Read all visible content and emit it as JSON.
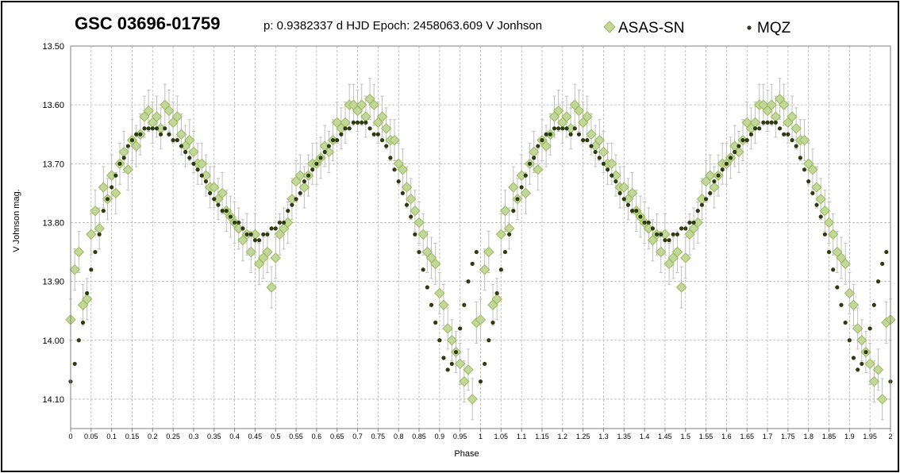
{
  "chart_data": {
    "type": "scatter",
    "title": "GSC 03696-01759",
    "subtitle": "p: 0.9382337 d  HJD Epoch: 2458063.609  V Jonhson",
    "xlabel": "Phase",
    "ylabel": "V Johnson mag.",
    "xlim": [
      0,
      2
    ],
    "ylim": [
      14.15,
      13.5
    ],
    "y_inverted": true,
    "grid": true,
    "legend_position": "top-right",
    "x_ticks": [
      "0",
      "0.05",
      "0.1",
      "0.15",
      "0.2",
      "0.25",
      "0.3",
      "0.35",
      "0.4",
      "0.45",
      "0.5",
      "0.55",
      "0.6",
      "0.65",
      "0.7",
      "0.75",
      "0.8",
      "0.85",
      "0.9",
      "0.95",
      "1",
      "1.05",
      "1.1",
      "1.15",
      "1.2",
      "1.25",
      "1.3",
      "1.35",
      "1.4",
      "1.45",
      "1.5",
      "1.55",
      "1.6",
      "1.65",
      "1.7",
      "1.75",
      "1.8",
      "1.85",
      "1.9",
      "1.95",
      "2"
    ],
    "y_ticks": [
      "13.50",
      "13.60",
      "13.70",
      "13.80",
      "13.90",
      "14.00",
      "14.10"
    ],
    "series": [
      {
        "name": "ASAS-SN",
        "marker": "diamond",
        "color": "#c3d69b",
        "edge_color": "#9bbb59",
        "error_bars": true,
        "x": [
          0.0,
          0.01,
          0.02,
          0.03,
          0.04,
          0.05,
          0.06,
          0.07,
          0.08,
          0.09,
          0.1,
          0.11,
          0.12,
          0.13,
          0.14,
          0.15,
          0.16,
          0.17,
          0.18,
          0.19,
          0.2,
          0.21,
          0.22,
          0.23,
          0.24,
          0.25,
          0.26,
          0.27,
          0.28,
          0.29,
          0.3,
          0.31,
          0.32,
          0.33,
          0.34,
          0.35,
          0.36,
          0.37,
          0.38,
          0.39,
          0.4,
          0.41,
          0.42,
          0.43,
          0.44,
          0.45,
          0.46,
          0.47,
          0.48,
          0.49,
          0.5,
          0.51,
          0.52,
          0.53,
          0.54,
          0.55,
          0.56,
          0.57,
          0.58,
          0.59,
          0.6,
          0.61,
          0.62,
          0.63,
          0.64,
          0.65,
          0.66,
          0.67,
          0.68,
          0.69,
          0.7,
          0.71,
          0.72,
          0.73,
          0.74,
          0.75,
          0.76,
          0.77,
          0.78,
          0.79,
          0.8,
          0.81,
          0.82,
          0.83,
          0.84,
          0.85,
          0.86,
          0.87,
          0.88,
          0.89,
          0.9,
          0.91,
          0.92,
          0.93,
          0.94,
          0.95,
          0.96,
          0.97,
          0.98,
          0.99,
          1.0,
          1.01,
          1.02,
          1.03,
          1.04,
          1.05,
          1.06,
          1.07,
          1.08,
          1.09,
          1.1,
          1.11,
          1.12,
          1.13,
          1.14,
          1.15,
          1.16,
          1.17,
          1.18,
          1.19,
          1.2,
          1.21,
          1.22,
          1.23,
          1.24,
          1.25,
          1.26,
          1.27,
          1.28,
          1.29,
          1.3,
          1.31,
          1.32,
          1.33,
          1.34,
          1.35,
          1.36,
          1.37,
          1.38,
          1.39,
          1.4,
          1.41,
          1.42,
          1.43,
          1.44,
          1.45,
          1.46,
          1.47,
          1.48,
          1.49,
          1.5,
          1.51,
          1.52,
          1.53,
          1.54,
          1.55,
          1.56,
          1.57,
          1.58,
          1.59,
          1.6,
          1.61,
          1.62,
          1.63,
          1.64,
          1.65,
          1.66,
          1.67,
          1.68,
          1.69,
          1.7,
          1.71,
          1.72,
          1.73,
          1.74,
          1.75,
          1.76,
          1.77,
          1.78,
          1.79,
          1.8,
          1.81,
          1.82,
          1.83,
          1.84,
          1.85,
          1.86,
          1.87,
          1.88,
          1.89,
          1.9,
          1.91,
          1.92,
          1.93,
          1.94,
          1.95,
          1.96,
          1.97,
          1.98,
          1.99,
          2.0
        ],
        "y": [
          13.965,
          13.88,
          13.85,
          13.94,
          13.93,
          13.82,
          13.78,
          13.81,
          13.74,
          13.76,
          13.72,
          13.75,
          13.7,
          13.68,
          13.71,
          13.66,
          13.67,
          13.65,
          13.62,
          13.61,
          13.63,
          13.62,
          13.64,
          13.6,
          13.61,
          13.63,
          13.62,
          13.65,
          13.67,
          13.66,
          13.68,
          13.7,
          13.7,
          13.72,
          13.74,
          13.74,
          13.76,
          13.75,
          13.78,
          13.79,
          13.8,
          13.81,
          13.83,
          13.82,
          13.85,
          13.82,
          13.87,
          13.86,
          13.85,
          13.91,
          13.86,
          13.82,
          13.81,
          13.8,
          13.76,
          13.73,
          13.72,
          13.74,
          13.72,
          13.7,
          13.7,
          13.69,
          13.67,
          13.68,
          13.66,
          13.63,
          13.64,
          13.63,
          13.6,
          13.6,
          13.61,
          13.6,
          13.62,
          13.59,
          13.6,
          13.63,
          13.62,
          13.64,
          13.66,
          13.66,
          13.7,
          13.71,
          13.74,
          13.76,
          13.78,
          13.8,
          13.82,
          13.85,
          13.86,
          13.87,
          13.92,
          13.94,
          13.98,
          14.0,
          14.02,
          14.04,
          14.07,
          14.05,
          14.1,
          13.97,
          13.965,
          13.88,
          13.85,
          13.94,
          13.93,
          13.82,
          13.78,
          13.81,
          13.74,
          13.76,
          13.72,
          13.75,
          13.7,
          13.68,
          13.71,
          13.66,
          13.67,
          13.65,
          13.62,
          13.61,
          13.63,
          13.62,
          13.64,
          13.6,
          13.61,
          13.63,
          13.62,
          13.65,
          13.67,
          13.66,
          13.68,
          13.7,
          13.7,
          13.72,
          13.74,
          13.74,
          13.76,
          13.75,
          13.78,
          13.79,
          13.8,
          13.81,
          13.83,
          13.82,
          13.85,
          13.82,
          13.87,
          13.86,
          13.85,
          13.91,
          13.86,
          13.82,
          13.81,
          13.8,
          13.76,
          13.73,
          13.72,
          13.74,
          13.72,
          13.7,
          13.7,
          13.69,
          13.67,
          13.68,
          13.66,
          13.63,
          13.64,
          13.63,
          13.6,
          13.6,
          13.61,
          13.6,
          13.62,
          13.59,
          13.6,
          13.63,
          13.62,
          13.64,
          13.66,
          13.66,
          13.7,
          13.71,
          13.74,
          13.76,
          13.78,
          13.8,
          13.82,
          13.85,
          13.86,
          13.87,
          13.92,
          13.94,
          13.98,
          14.0,
          14.02,
          14.04,
          14.07,
          14.05,
          14.1,
          13.97,
          13.965
        ]
      },
      {
        "name": "MQZ",
        "marker": "dot",
        "color": "#2e3a10",
        "x": [
          0.0,
          0.01,
          0.02,
          0.03,
          0.04,
          0.05,
          0.06,
          0.07,
          0.08,
          0.09,
          0.1,
          0.11,
          0.12,
          0.13,
          0.14,
          0.15,
          0.16,
          0.17,
          0.18,
          0.19,
          0.2,
          0.21,
          0.22,
          0.23,
          0.24,
          0.25,
          0.26,
          0.27,
          0.28,
          0.29,
          0.3,
          0.31,
          0.32,
          0.33,
          0.34,
          0.35,
          0.36,
          0.37,
          0.38,
          0.39,
          0.4,
          0.41,
          0.42,
          0.43,
          0.44,
          0.45,
          0.46,
          0.47,
          0.48,
          0.49,
          0.5,
          0.51,
          0.52,
          0.53,
          0.54,
          0.55,
          0.56,
          0.57,
          0.58,
          0.59,
          0.6,
          0.61,
          0.62,
          0.63,
          0.64,
          0.65,
          0.66,
          0.67,
          0.68,
          0.69,
          0.7,
          0.71,
          0.72,
          0.73,
          0.74,
          0.75,
          0.76,
          0.77,
          0.78,
          0.79,
          0.8,
          0.81,
          0.82,
          0.83,
          0.84,
          0.85,
          0.86,
          0.87,
          0.88,
          0.89,
          0.9,
          0.91,
          0.92,
          0.93,
          0.94,
          0.95,
          0.96,
          0.97,
          0.98,
          0.99,
          1.0,
          1.01,
          1.02,
          1.03,
          1.04,
          1.05,
          1.06,
          1.07,
          1.08,
          1.09,
          1.1,
          1.11,
          1.12,
          1.13,
          1.14,
          1.15,
          1.16,
          1.17,
          1.18,
          1.19,
          1.2,
          1.21,
          1.22,
          1.23,
          1.24,
          1.25,
          1.26,
          1.27,
          1.28,
          1.29,
          1.3,
          1.31,
          1.32,
          1.33,
          1.34,
          1.35,
          1.36,
          1.37,
          1.38,
          1.39,
          1.4,
          1.41,
          1.42,
          1.43,
          1.44,
          1.45,
          1.46,
          1.47,
          1.48,
          1.49,
          1.5,
          1.51,
          1.52,
          1.53,
          1.54,
          1.55,
          1.56,
          1.57,
          1.58,
          1.59,
          1.6,
          1.61,
          1.62,
          1.63,
          1.64,
          1.65,
          1.66,
          1.67,
          1.68,
          1.69,
          1.7,
          1.71,
          1.72,
          1.73,
          1.74,
          1.75,
          1.76,
          1.77,
          1.78,
          1.79,
          1.8,
          1.81,
          1.82,
          1.83,
          1.84,
          1.85,
          1.86,
          1.87,
          1.88,
          1.89,
          1.9,
          1.91,
          1.92,
          1.93,
          1.94,
          1.95,
          1.96,
          1.97,
          1.98,
          1.99,
          2.0
        ],
        "y": [
          14.07,
          14.04,
          14.0,
          13.97,
          13.92,
          13.88,
          13.85,
          13.82,
          13.78,
          13.76,
          13.74,
          13.72,
          13.7,
          13.69,
          13.67,
          13.66,
          13.65,
          13.65,
          13.64,
          13.64,
          13.64,
          13.64,
          13.65,
          13.64,
          13.65,
          13.66,
          13.66,
          13.67,
          13.68,
          13.69,
          13.7,
          13.71,
          13.72,
          13.73,
          13.75,
          13.76,
          13.77,
          13.78,
          13.78,
          13.79,
          13.8,
          13.8,
          13.81,
          13.82,
          13.82,
          13.83,
          13.83,
          13.82,
          13.82,
          13.81,
          13.81,
          13.8,
          13.8,
          13.78,
          13.77,
          13.76,
          13.75,
          13.73,
          13.72,
          13.71,
          13.7,
          13.69,
          13.68,
          13.67,
          13.66,
          13.66,
          13.65,
          13.64,
          13.64,
          13.63,
          13.63,
          13.63,
          13.63,
          13.64,
          13.65,
          13.65,
          13.66,
          13.67,
          13.69,
          13.71,
          13.73,
          13.75,
          13.77,
          13.79,
          13.82,
          13.85,
          13.88,
          13.91,
          13.94,
          13.97,
          14.0,
          14.03,
          14.05,
          14.04,
          14.02,
          13.98,
          13.94,
          13.9,
          13.87,
          13.85,
          14.07,
          14.04,
          14.0,
          13.97,
          13.92,
          13.88,
          13.85,
          13.82,
          13.78,
          13.76,
          13.74,
          13.72,
          13.7,
          13.69,
          13.67,
          13.66,
          13.65,
          13.65,
          13.64,
          13.64,
          13.64,
          13.64,
          13.65,
          13.64,
          13.65,
          13.66,
          13.66,
          13.67,
          13.68,
          13.69,
          13.7,
          13.71,
          13.72,
          13.73,
          13.75,
          13.76,
          13.77,
          13.78,
          13.78,
          13.79,
          13.8,
          13.8,
          13.81,
          13.82,
          13.82,
          13.83,
          13.83,
          13.82,
          13.82,
          13.81,
          13.81,
          13.8,
          13.8,
          13.78,
          13.77,
          13.76,
          13.75,
          13.73,
          13.72,
          13.71,
          13.7,
          13.69,
          13.68,
          13.67,
          13.66,
          13.66,
          13.65,
          13.64,
          13.64,
          13.63,
          13.63,
          13.63,
          13.63,
          13.64,
          13.65,
          13.65,
          13.66,
          13.67,
          13.69,
          13.71,
          13.73,
          13.75,
          13.77,
          13.79,
          13.82,
          13.85,
          13.88,
          13.91,
          13.94,
          13.97,
          14.0,
          14.03,
          14.05,
          14.04,
          14.02,
          13.98,
          13.94,
          13.9,
          13.87,
          13.85,
          14.07
        ]
      }
    ]
  },
  "legend": {
    "asas_label": "ASAS-SN",
    "mqz_label": "MQZ"
  },
  "colors": {
    "grid": "#b4b4b4",
    "error_bar": "#c0c0c0",
    "asas_fill": "#c3d69b",
    "asas_edge": "#9bbb59",
    "mqz_fill": "#2e3a10"
  }
}
